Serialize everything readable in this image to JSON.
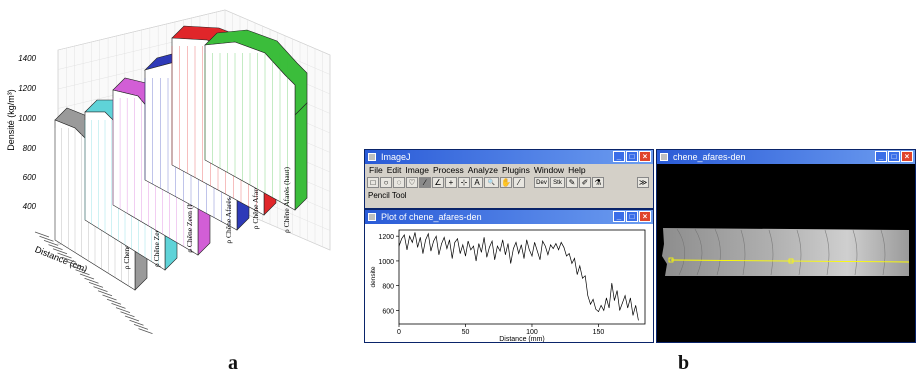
{
  "figure": {
    "panel_a_label": "a",
    "panel_b_label": "b"
  },
  "chart3d": {
    "ylabel": "Densité (kg/m³)",
    "xlabel": "Distance (cm)",
    "yticks": [
      "400",
      "600",
      "800",
      "1000",
      "1200",
      "1400"
    ],
    "series": [
      {
        "name": "ρ Chene Zeen (bas)",
        "color": "#9a9a9a"
      },
      {
        "name": "ρ Chêne Zeen (médiane)",
        "color": "#5fd3d8"
      },
      {
        "name": "ρ Chêne Zeen (haut)",
        "color": "#d25ed6"
      },
      {
        "name": "ρ Chêne Afarès (bas)",
        "color": "#2e3ab8"
      },
      {
        "name": "ρ Chêne Afares (médiane)",
        "color": "#e0262a"
      },
      {
        "name": "ρ Chêne Afarès (haut)",
        "color": "#3bbd3b"
      }
    ]
  },
  "imagej": {
    "title": "ImageJ",
    "menu": [
      "File",
      "Edit",
      "Image",
      "Process",
      "Analyze",
      "Plugins",
      "Window",
      "Help"
    ],
    "status": "Pencil Tool",
    "tools": [
      "□",
      "○",
      "◌",
      "♡",
      "∕",
      "∠",
      "+",
      "⊹",
      "A",
      "🔍",
      "✋",
      "⁄",
      "Dev",
      "Stk",
      "✎",
      "✐",
      "⚗",
      "≫"
    ],
    "icon_names": [
      "rectangle-tool-icon",
      "oval-tool-icon",
      "polygon-tool-icon",
      "freehand-tool-icon",
      "line-tool-icon",
      "angle-tool-icon",
      "point-tool-icon",
      "wand-tool-icon",
      "text-tool-icon",
      "magnifier-tool-icon",
      "scroll-tool-icon",
      "dropper-tool-icon",
      "dev-tool-icon",
      "stack-tool-icon",
      "pencil-tool-icon",
      "brush-tool-icon",
      "flood-fill-tool-icon",
      "more-tools-icon"
    ]
  },
  "plotwin": {
    "title": "Plot of chene_afares-den"
  },
  "imagewin": {
    "title": "chene_afares-den"
  },
  "chart_data": {
    "type": "line",
    "title": "",
    "xlabel": "Distance (mm)",
    "ylabel": "densite",
    "xlim": [
      0,
      185
    ],
    "ylim": [
      490,
      1250
    ],
    "xticks": [
      0,
      50,
      100,
      150
    ],
    "yticks": [
      600,
      800,
      1000,
      1200
    ],
    "series": [
      {
        "x": [
          0,
          2,
          4,
          6,
          8,
          10,
          12,
          14,
          16,
          18,
          20,
          22,
          24,
          26,
          28,
          30,
          32,
          34,
          36,
          38,
          40,
          42,
          44,
          46,
          48,
          50,
          52,
          54,
          56,
          58,
          60,
          62,
          64,
          66,
          68,
          70,
          72,
          74,
          76,
          78,
          80,
          82,
          84,
          86,
          88,
          90,
          92,
          94,
          96,
          98,
          100,
          102,
          104,
          106,
          108,
          110,
          112,
          114,
          116,
          118,
          120,
          122,
          124,
          126,
          128,
          130,
          132,
          134,
          136,
          138,
          140,
          142,
          144,
          146,
          148,
          150,
          152,
          154,
          156,
          158,
          160,
          162,
          164,
          166,
          168,
          170,
          172,
          174,
          176,
          178,
          180
        ],
        "y": [
          1120,
          1180,
          1210,
          1090,
          1200,
          1150,
          1230,
          1110,
          1190,
          1060,
          1170,
          1220,
          1080,
          1160,
          1200,
          1050,
          1140,
          1190,
          1100,
          1170,
          1020,
          1150,
          1180,
          1060,
          1130,
          1040,
          1160,
          1090,
          1120,
          1000,
          1140,
          1070,
          1190,
          1030,
          1110,
          1160,
          1010,
          1120,
          1080,
          1170,
          1050,
          1140,
          980,
          1100,
          1150,
          1060,
          1130,
          1020,
          1170,
          1090,
          1040,
          1150,
          1080,
          1010,
          1160,
          1120,
          1050,
          1130,
          1100,
          1140,
          1090,
          1150,
          1110,
          1040,
          1060,
          980,
          1020,
          890,
          960,
          860,
          880,
          720,
          650,
          690,
          610,
          590,
          640,
          600,
          700,
          620,
          820,
          680,
          760,
          600,
          660,
          720,
          620,
          700,
          560,
          640,
          520
        ]
      }
    ]
  }
}
